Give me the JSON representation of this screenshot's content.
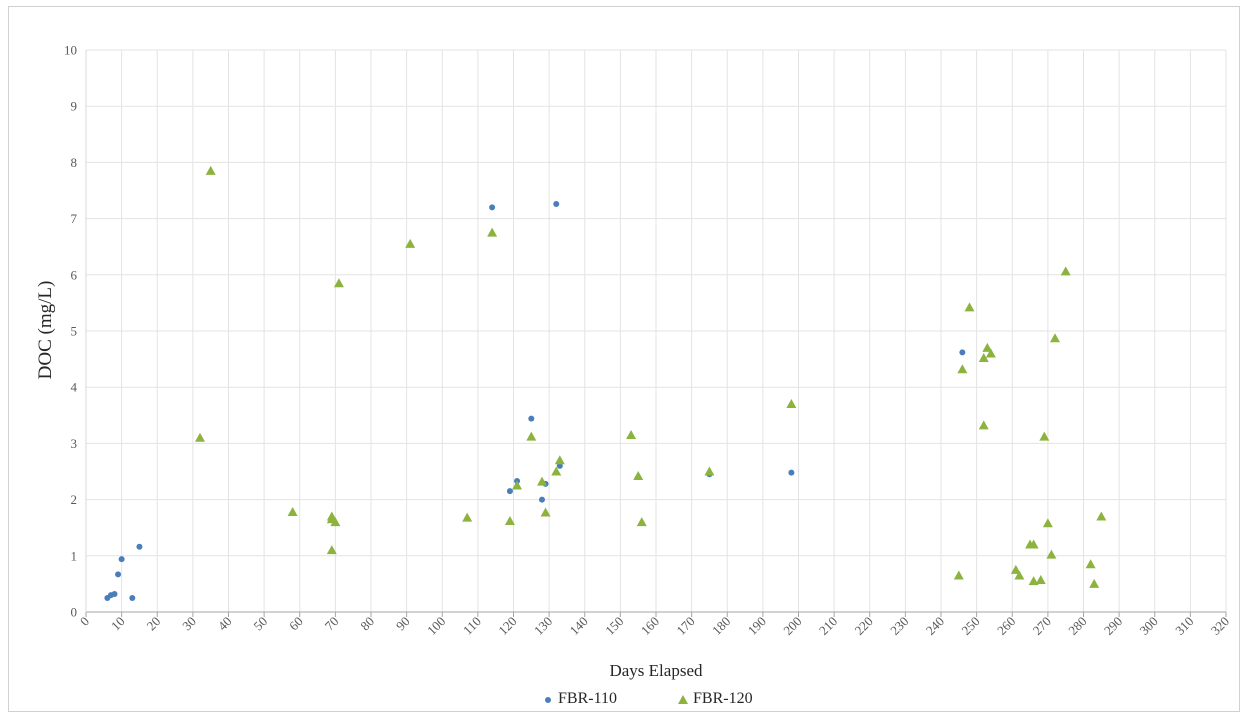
{
  "chart_data": {
    "type": "scatter",
    "title": "",
    "xlabel": "Days Elapsed",
    "ylabel": "DOC (mg/L)",
    "xlim": [
      0,
      320
    ],
    "ylim": [
      0,
      10
    ],
    "x_ticks": [
      0,
      10,
      20,
      30,
      40,
      50,
      60,
      70,
      80,
      90,
      100,
      110,
      120,
      130,
      140,
      150,
      160,
      170,
      180,
      190,
      200,
      210,
      220,
      230,
      240,
      250,
      260,
      270,
      280,
      290,
      300,
      310,
      320
    ],
    "y_ticks": [
      0,
      1,
      2,
      3,
      4,
      5,
      6,
      7,
      8,
      9,
      10
    ],
    "grid": true,
    "legend_position": "bottom",
    "series": [
      {
        "name": "FBR-110",
        "marker": "circle",
        "color": "#4a7ebb",
        "points": [
          [
            6,
            0.25
          ],
          [
            7,
            0.3
          ],
          [
            8,
            0.32
          ],
          [
            9,
            0.67
          ],
          [
            10,
            0.94
          ],
          [
            13,
            0.25
          ],
          [
            15,
            1.16
          ],
          [
            114,
            7.2
          ],
          [
            119,
            2.15
          ],
          [
            121,
            2.33
          ],
          [
            125,
            3.44
          ],
          [
            128,
            2.0
          ],
          [
            129,
            2.28
          ],
          [
            132,
            7.26
          ],
          [
            133,
            2.6
          ],
          [
            175,
            2.45
          ],
          [
            198,
            2.48
          ],
          [
            246,
            4.62
          ]
        ]
      },
      {
        "name": "FBR-120",
        "marker": "triangle",
        "color": "#8db33f",
        "points": [
          [
            32,
            3.1
          ],
          [
            35,
            7.85
          ],
          [
            58,
            1.78
          ],
          [
            69,
            1.7
          ],
          [
            69,
            1.65
          ],
          [
            70,
            1.6
          ],
          [
            69,
            1.1
          ],
          [
            71,
            5.85
          ],
          [
            91,
            6.55
          ],
          [
            107,
            1.68
          ],
          [
            114,
            6.75
          ],
          [
            119,
            1.62
          ],
          [
            121,
            2.25
          ],
          [
            125,
            3.12
          ],
          [
            128,
            2.32
          ],
          [
            129,
            1.77
          ],
          [
            132,
            2.5
          ],
          [
            133,
            2.7
          ],
          [
            153,
            3.15
          ],
          [
            155,
            2.42
          ],
          [
            156,
            1.6
          ],
          [
            175,
            2.5
          ],
          [
            198,
            3.7
          ],
          [
            245,
            0.65
          ],
          [
            246,
            4.32
          ],
          [
            248,
            5.42
          ],
          [
            252,
            4.52
          ],
          [
            252,
            3.32
          ],
          [
            253,
            4.7
          ],
          [
            254,
            4.6
          ],
          [
            261,
            0.75
          ],
          [
            262,
            0.65
          ],
          [
            265,
            1.2
          ],
          [
            266,
            1.2
          ],
          [
            266,
            0.55
          ],
          [
            268,
            0.57
          ],
          [
            269,
            3.12
          ],
          [
            270,
            1.58
          ],
          [
            271,
            1.02
          ],
          [
            272,
            4.87
          ],
          [
            275,
            6.06
          ],
          [
            282,
            0.85
          ],
          [
            283,
            0.5
          ],
          [
            285,
            1.7
          ]
        ]
      }
    ]
  }
}
